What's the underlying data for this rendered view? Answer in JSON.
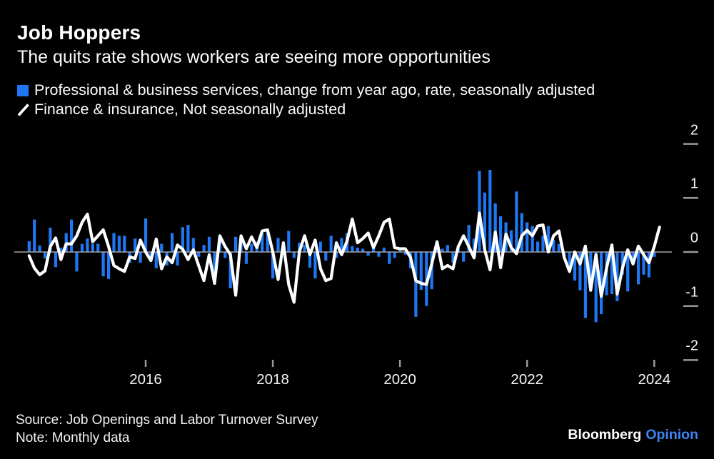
{
  "header": {
    "title": "Job Hoppers",
    "subtitle": "The quits rate shows workers are seeing more opportunities"
  },
  "legend": [
    {
      "swatch": "square",
      "color": "#1f78f3",
      "label": "Professional & business services, change from year ago, rate, seasonally adjusted"
    },
    {
      "swatch": "slash",
      "color": "#ffffff",
      "label": "Finance & insurance, Not seasonally adjusted"
    }
  ],
  "footer": {
    "source": "Source: Job Openings and Labor Turnover Survey",
    "note": "Note: Monthly data",
    "brand": "Bloomberg",
    "brand_suffix": "Opinion"
  },
  "colors": {
    "background": "#000000",
    "bar": "#1f78f3",
    "line": "#ffffff",
    "zero_line": "#a3a3a3",
    "tick": "#9a9a9a",
    "tick_label": "#f5f5f5",
    "brand_accent": "#3d85f4"
  },
  "chart_data": {
    "type": "bar",
    "frequency": "monthly",
    "start_month": "2014-03",
    "x_ticks": [
      {
        "label": "2016"
      },
      {
        "label": "2018"
      },
      {
        "label": "2020"
      },
      {
        "label": "2022"
      },
      {
        "label": "2024"
      }
    ],
    "y_ticks": [
      2,
      1,
      0,
      -1,
      -2
    ],
    "ylim": [
      -2.35,
      2.2
    ],
    "ylabel": "",
    "xlabel": "",
    "grid": false,
    "legend_position": "top-left",
    "series": [
      {
        "name": "Professional & business services, change from year ago, rate, seasonally adjusted",
        "type": "bar",
        "color": "#1f78f3",
        "values": [
          0.2,
          0.6,
          0.12,
          -0.12,
          0.45,
          -0.28,
          0.08,
          0.35,
          0.6,
          -0.36,
          0.15,
          0.25,
          0.15,
          0.15,
          -0.45,
          -0.5,
          0.35,
          0.3,
          0.3,
          -0.2,
          0.25,
          -0.2,
          0.62,
          -0.1,
          -0.3,
          0.15,
          -0.25,
          0.35,
          -0.25,
          0.46,
          0.5,
          0.26,
          -0.09,
          0.13,
          0.28,
          -0.6,
          0.24,
          -0.11,
          -0.67,
          0.28,
          0.17,
          -0.22,
          0.15,
          0.19,
          0.35,
          0.39,
          -0.49,
          0.26,
          0.15,
          0.39,
          -0.11,
          0.17,
          0.13,
          -0.29,
          -0.49,
          0.19,
          -0.16,
          0.3,
          -0.11,
          0.26,
          0.35,
          0.11,
          0.08,
          0.06,
          -0.07,
          0.13,
          -0.09,
          0.08,
          -0.22,
          -0.11,
          0.06,
          -0.05,
          -0.3,
          -1.2,
          -0.7,
          -1.0,
          -0.69,
          0.11,
          0.06,
          0.13,
          -0.2,
          0.08,
          -0.18,
          0.5,
          0.25,
          1.5,
          1.1,
          1.52,
          0.9,
          0.66,
          0.55,
          0.4,
          1.12,
          0.72,
          0.55,
          0.48,
          0.19,
          0.3,
          0.48,
          0.22,
          0.15,
          -0.09,
          -0.31,
          -0.53,
          -0.71,
          -1.22,
          -0.58,
          -1.3,
          -1.15,
          -0.8,
          -0.78,
          -0.91,
          -0.42,
          -0.73,
          -0.22,
          -0.6,
          -0.42,
          -0.47,
          -0.09
        ]
      },
      {
        "name": "Finance & insurance, Not seasonally adjusted",
        "type": "line",
        "color": "#ffffff",
        "values": [
          -0.07,
          -0.3,
          -0.42,
          -0.35,
          0.1,
          0.26,
          -0.14,
          0.15,
          0.15,
          0.3,
          0.55,
          0.7,
          0.19,
          0.3,
          0.41,
          0.1,
          -0.25,
          -0.31,
          -0.36,
          -0.09,
          -0.12,
          0.22,
          0.0,
          -0.16,
          0.24,
          -0.31,
          -0.09,
          -0.2,
          0.13,
          0.05,
          -0.14,
          0.04,
          -0.25,
          -0.53,
          -0.05,
          -0.58,
          0.3,
          0.1,
          -0.05,
          -0.8,
          0.3,
          0.06,
          0.28,
          0.08,
          0.39,
          0.41,
          0.0,
          -0.51,
          0.17,
          -0.6,
          -0.93,
          0.0,
          0.3,
          -0.05,
          0.22,
          -0.31,
          -0.53,
          -0.49,
          0.17,
          -0.05,
          0.2,
          0.61,
          0.17,
          0.25,
          0.35,
          0.08,
          0.3,
          0.55,
          0.61,
          0.08,
          0.06,
          0.06,
          -0.1,
          -0.53,
          -0.58,
          -0.6,
          -0.22,
          0.19,
          -0.31,
          -0.25,
          -0.31,
          0.1,
          0.3,
          0.1,
          -0.11,
          0.72,
          0.04,
          -0.33,
          0.37,
          -0.29,
          0.33,
          0.08,
          -0.03,
          0.3,
          0.4,
          0.3,
          0.48,
          0.5,
          0.0,
          0.3,
          0.39,
          -0.1,
          -0.36,
          0.0,
          -0.22,
          0.11,
          -0.71,
          -0.05,
          -0.82,
          -0.3,
          0.13,
          -0.78,
          -0.3,
          0.04,
          -0.22,
          0.11,
          -0.05,
          -0.2,
          0.1,
          0.46
        ]
      }
    ]
  }
}
